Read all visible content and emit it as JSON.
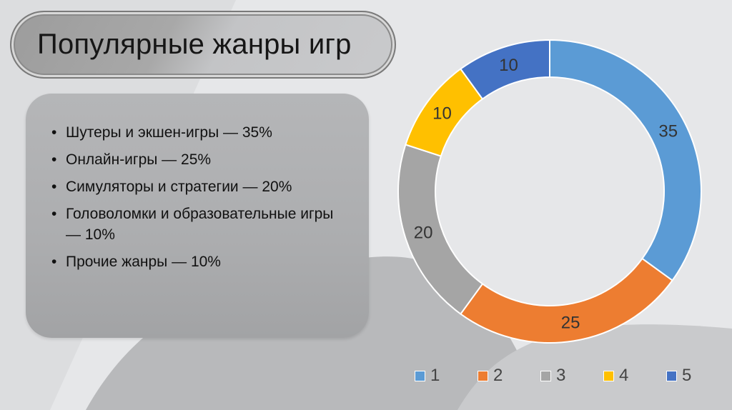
{
  "slide": {
    "title": "Популярные жанры игр",
    "bullets": [
      {
        "bullet": "•",
        "text": "Шутеры и экшен-игры — 35%"
      },
      {
        "bullet": "•",
        "text": "Онлайн-игры — 25%"
      },
      {
        "bullet": "•",
        "text": " Симуляторы и стратегии — 20%"
      },
      {
        "bullet": "•",
        "text": " Головоломки и образовательные игры — 10%"
      },
      {
        "bullet": "•",
        "text": " Прочие жанры — 10%"
      }
    ]
  },
  "legend": [
    {
      "label": "1",
      "color": "#5b9bd5"
    },
    {
      "label": "2",
      "color": "#ed7d31"
    },
    {
      "label": "3",
      "color": "#a5a5a5"
    },
    {
      "label": "4",
      "color": "#ffc000"
    },
    {
      "label": "5",
      "color": "#4472c4"
    }
  ],
  "chart_data": {
    "type": "pie",
    "subtype": "doughnut",
    "title": "",
    "categories": [
      "1",
      "2",
      "3",
      "4",
      "5"
    ],
    "values": [
      35,
      25,
      20,
      10,
      10
    ],
    "colors": [
      "#5b9bd5",
      "#ed7d31",
      "#a5a5a5",
      "#ffc000",
      "#4472c4"
    ],
    "data_labels": [
      "35",
      "25",
      "20",
      "10",
      "10"
    ],
    "legend_position": "bottom",
    "start_angle_deg": 0,
    "direction": "clockwise"
  }
}
